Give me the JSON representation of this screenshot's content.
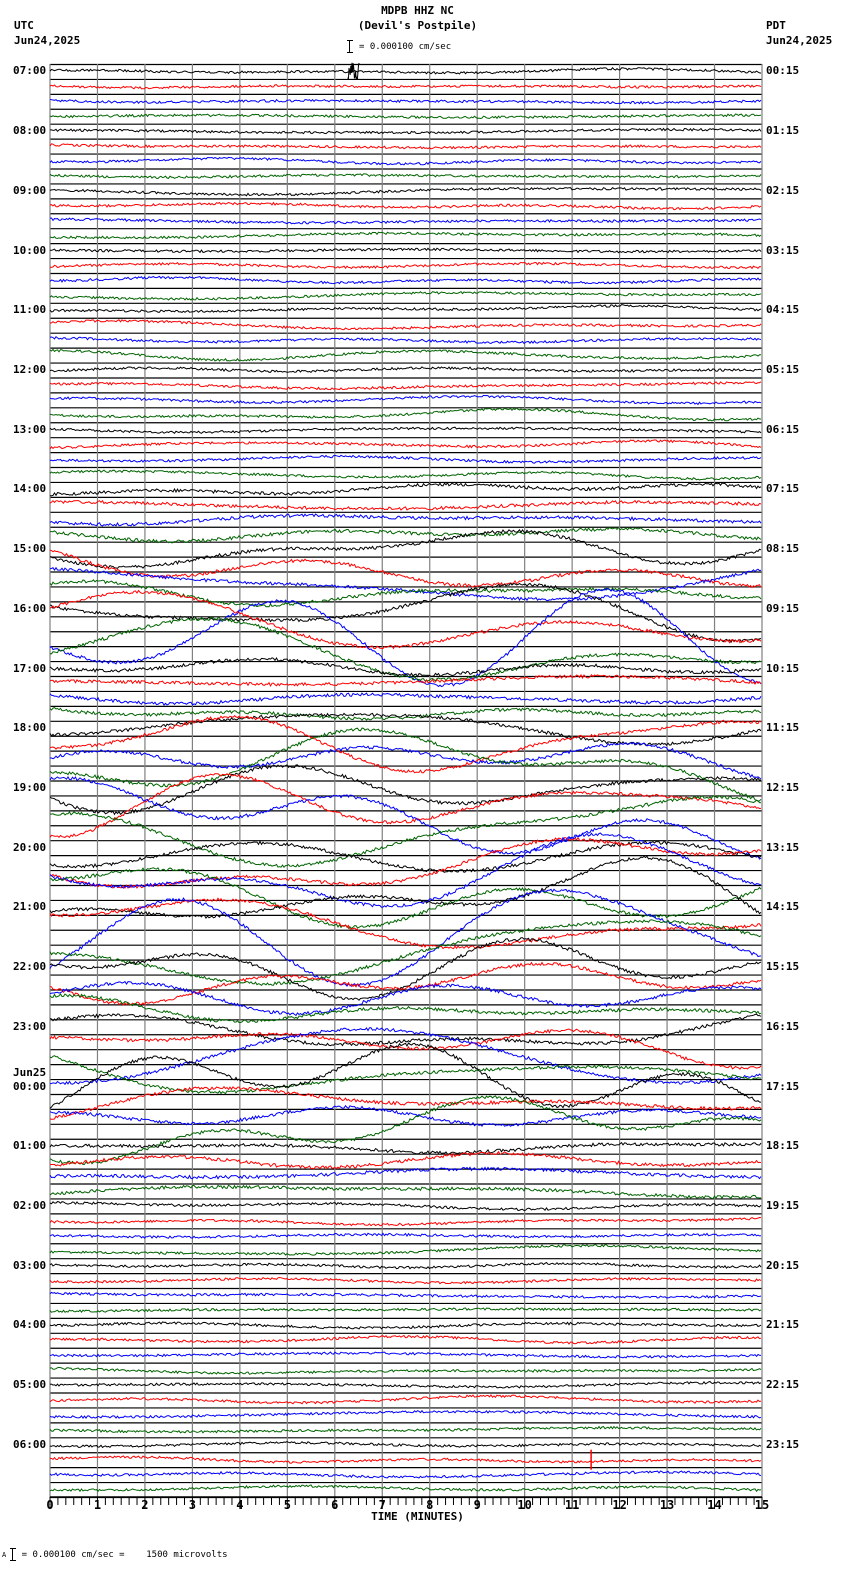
{
  "header": {
    "title": "MDPB HHZ NC",
    "subtitle": "(Devil's Postpile)",
    "left_tz": "UTC",
    "left_date": "Jun24,2025",
    "right_tz": "PDT",
    "right_date": "Jun24,2025",
    "scale_text": "= 0.000100 cm/sec"
  },
  "footer": {
    "scale_text": "= 0.000100 cm/sec =    1500 microvolts",
    "scale_prefix": "A"
  },
  "colors": {
    "trace_cycle": [
      "#000000",
      "#ff0000",
      "#0000ff",
      "#006400"
    ],
    "grid_vertical": "#808080",
    "grid_horizontal": "#000000"
  },
  "chart_data": {
    "type": "line",
    "title": "MDPB HHZ NC (Devil's Postpile)",
    "subtitle": "Helicorder seismogram, 24 hours, 15-minute rows",
    "xlabel": "TIME (MINUTES)",
    "ylabel": "",
    "xlim": [
      0,
      15
    ],
    "x_ticks": [
      "0",
      "1",
      "2",
      "3",
      "4",
      "5",
      "6",
      "7",
      "8",
      "9",
      "10",
      "11",
      "12",
      "13",
      "14",
      "15"
    ],
    "traces_per_hour": 4,
    "trace_count": 96,
    "trace_color_cycle": [
      "black",
      "red",
      "blue",
      "green"
    ],
    "left_axis_labels_utc": [
      "07:00",
      "08:00",
      "09:00",
      "10:00",
      "11:00",
      "12:00",
      "13:00",
      "14:00",
      "15:00",
      "16:00",
      "17:00",
      "18:00",
      "19:00",
      "20:00",
      "21:00",
      "22:00",
      "23:00",
      "Jun25 00:00",
      "01:00",
      "02:00",
      "03:00",
      "04:00",
      "05:00",
      "06:00"
    ],
    "right_axis_labels_pdt": [
      "00:15",
      "01:15",
      "02:15",
      "03:15",
      "04:15",
      "05:15",
      "06:15",
      "07:15",
      "08:15",
      "09:15",
      "10:15",
      "11:15",
      "12:15",
      "13:15",
      "14:15",
      "15:15",
      "16:15",
      "17:15",
      "18:15",
      "19:15",
      "20:15",
      "21:15",
      "22:15",
      "23:15"
    ],
    "scale": "0.000100 cm/sec = 1500 microvolts",
    "grid": true,
    "annotations": [
      "Small burst near 07:00 row at ~6.4 min",
      "Strong long-period activity approx. 15:00-01:00 UTC",
      "Spike at 06:15 UTC row near 11.4 min"
    ],
    "activity_by_hour_utc": {
      "07:00": "quiet",
      "08:00": "quiet",
      "09:00": "quiet",
      "10:00": "quiet",
      "11:00": "low",
      "12:00": "low",
      "13:00": "low",
      "14:00": "moderate",
      "15:00": "high",
      "16:00": "high",
      "17:00": "moderate",
      "18:00": "high",
      "19:00": "very high",
      "20:00": "very high",
      "21:00": "very high",
      "22:00": "high",
      "23:00": "high",
      "00:00": "high",
      "01:00": "moderate",
      "02:00": "low",
      "03:00": "quiet",
      "04:00": "quiet",
      "05:00": "quiet",
      "06:00": "quiet"
    }
  }
}
